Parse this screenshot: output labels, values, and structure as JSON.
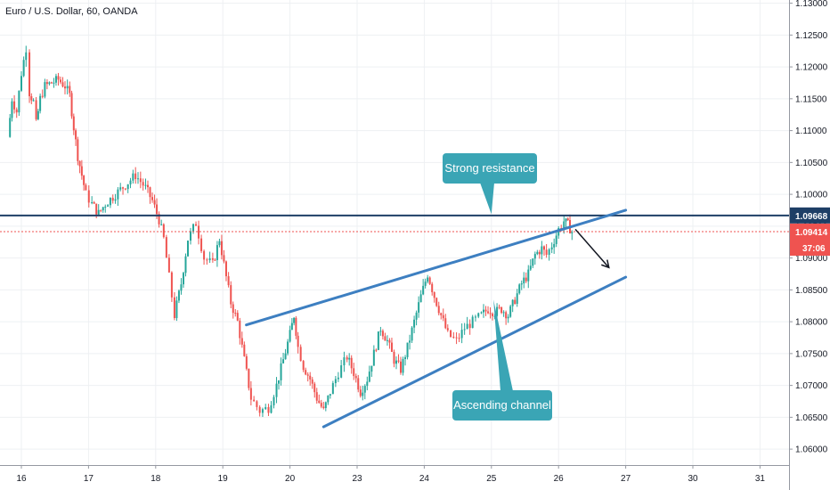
{
  "header": {
    "title": "Euro / U.S. Dollar, 60, OANDA"
  },
  "colors": {
    "up": "#26a69a",
    "down": "#ef5350",
    "grid": "#eef0f3",
    "resistance": "#1e3f66",
    "channel": "#3d7fc1",
    "callout": "#3aa5b5",
    "last_price": "#ef5350"
  },
  "chart_data": {
    "type": "candlestick",
    "symbol": "Euro / U.S. Dollar, 60, OANDA",
    "ylim": [
      1.0575,
      1.1305
    ],
    "y_ticks": [
      "1.06000",
      "1.06500",
      "1.07000",
      "1.07500",
      "1.08000",
      "1.08500",
      "1.09000",
      "1.09500",
      "1.10000",
      "1.10500",
      "1.11000",
      "1.11500",
      "1.12000",
      "1.12500",
      "1.13000"
    ],
    "x_ticks": [
      {
        "label": "16",
        "pos": 1.0
      },
      {
        "label": "17",
        "pos": 2.0
      },
      {
        "label": "18",
        "pos": 3.0
      },
      {
        "label": "19",
        "pos": 4.0
      },
      {
        "label": "20",
        "pos": 5.0
      },
      {
        "label": "23",
        "pos": 6.0
      },
      {
        "label": "24",
        "pos": 7.0
      },
      {
        "label": "25",
        "pos": 8.0
      },
      {
        "label": "26",
        "pos": 9.0
      },
      {
        "label": "27",
        "pos": 10.0
      },
      {
        "label": "30",
        "pos": 11.0
      },
      {
        "label": "31",
        "pos": 12.0
      }
    ],
    "price_path": [
      [
        0.8,
        1.109
      ],
      [
        0.86,
        1.115
      ],
      [
        0.93,
        1.113
      ],
      [
        1.0,
        1.119
      ],
      [
        1.07,
        1.123
      ],
      [
        1.12,
        1.116
      ],
      [
        1.18,
        1.1145
      ],
      [
        1.22,
        1.111
      ],
      [
        1.28,
        1.115
      ],
      [
        1.35,
        1.117
      ],
      [
        1.45,
        1.1175
      ],
      [
        1.55,
        1.118
      ],
      [
        1.65,
        1.117
      ],
      [
        1.72,
        1.1155
      ],
      [
        1.78,
        1.1105
      ],
      [
        1.84,
        1.106
      ],
      [
        1.9,
        1.103
      ],
      [
        1.96,
        1.1
      ],
      [
        2.05,
        1.0985
      ],
      [
        2.15,
        1.097
      ],
      [
        2.25,
        1.0985
      ],
      [
        2.4,
        1.1
      ],
      [
        2.55,
        1.1015
      ],
      [
        2.7,
        1.103
      ],
      [
        2.85,
        1.101
      ],
      [
        2.95,
        1.099
      ],
      [
        3.05,
        1.096
      ],
      [
        3.12,
        1.093
      ],
      [
        3.2,
        1.087
      ],
      [
        3.28,
        1.081
      ],
      [
        3.38,
        1.086
      ],
      [
        3.48,
        1.093
      ],
      [
        3.6,
        1.0955
      ],
      [
        3.72,
        1.09
      ],
      [
        3.85,
        1.089
      ],
      [
        3.95,
        1.093
      ],
      [
        4.05,
        1.087
      ],
      [
        4.12,
        1.083
      ],
      [
        4.22,
        1.08
      ],
      [
        4.32,
        1.074
      ],
      [
        4.42,
        1.068
      ],
      [
        4.55,
        1.066
      ],
      [
        4.68,
        1.0665
      ],
      [
        4.8,
        1.07
      ],
      [
        4.9,
        1.074
      ],
      [
        5.0,
        1.078
      ],
      [
        5.06,
        1.081
      ],
      [
        5.12,
        1.076
      ],
      [
        5.2,
        1.073
      ],
      [
        5.3,
        1.071
      ],
      [
        5.4,
        1.068
      ],
      [
        5.5,
        1.066
      ],
      [
        5.6,
        1.069
      ],
      [
        5.72,
        1.072
      ],
      [
        5.85,
        1.0745
      ],
      [
        5.95,
        1.072
      ],
      [
        6.05,
        1.069
      ],
      [
        6.15,
        1.071
      ],
      [
        6.25,
        1.075
      ],
      [
        6.35,
        1.079
      ],
      [
        6.45,
        1.077
      ],
      [
        6.55,
        1.074
      ],
      [
        6.65,
        1.0725
      ],
      [
        6.75,
        1.076
      ],
      [
        6.85,
        1.08
      ],
      [
        6.95,
        1.084
      ],
      [
        7.05,
        1.0875
      ],
      [
        7.15,
        1.084
      ],
      [
        7.25,
        1.081
      ],
      [
        7.35,
        1.078
      ],
      [
        7.48,
        1.077
      ],
      [
        7.6,
        1.079
      ],
      [
        7.72,
        1.08
      ],
      [
        7.85,
        1.081
      ],
      [
        7.95,
        1.082
      ],
      [
        8.05,
        1.0815
      ],
      [
        8.15,
        1.082
      ],
      [
        8.25,
        1.081
      ],
      [
        8.35,
        1.0835
      ],
      [
        8.45,
        1.086
      ],
      [
        8.55,
        1.0875
      ],
      [
        8.65,
        1.0905
      ],
      [
        8.75,
        1.0915
      ],
      [
        8.82,
        1.0905
      ],
      [
        8.9,
        1.092
      ],
      [
        9.0,
        1.0945
      ],
      [
        9.08,
        1.0958
      ],
      [
        9.14,
        1.0952
      ],
      [
        9.2,
        1.0941
      ]
    ],
    "annotations": {
      "resistance_level": 1.09668,
      "last_price": 1.09414,
      "resistance_label": "1.09668",
      "last_price_label": "1.09414",
      "countdown_label": "37:06",
      "channel_upper": [
        [
          4.35,
          1.0795
        ],
        [
          10.0,
          1.0975
        ]
      ],
      "channel_lower": [
        [
          5.5,
          1.0635
        ],
        [
          10.0,
          1.087
        ]
      ],
      "projection_arrow": [
        [
          9.25,
          1.0945
        ],
        [
          9.75,
          1.0885
        ]
      ],
      "callouts": [
        {
          "text": "Strong resistance",
          "target": [
            8.0,
            1.0966
          ]
        },
        {
          "text": "Ascending channel",
          "target": [
            8.03,
            1.0835
          ]
        }
      ]
    }
  }
}
